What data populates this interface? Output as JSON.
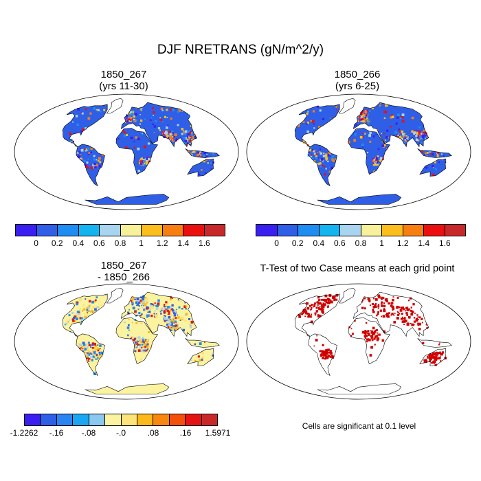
{
  "title": "DJF NRETRANS (gN/m^2/y)",
  "panels": [
    {
      "id": "p1",
      "line1": "1850_267",
      "line2": "(yrs 11-30)"
    },
    {
      "id": "p2",
      "line1": "1850_266",
      "line2": "(yrs 6-25)"
    },
    {
      "id": "p3",
      "line1": "1850_267",
      "line2": "- 1850_266"
    },
    {
      "id": "p4",
      "line1": "T-Test of two Case means at each grid point",
      "line2": ""
    }
  ],
  "colorbar_abs": {
    "colors": [
      "#3a1ff0",
      "#2e5fe6",
      "#1e8cf0",
      "#13b4f0",
      "#a8d4f0",
      "#f8f19c",
      "#fbbe1d",
      "#f77f12",
      "#ea1010",
      "#c9282a"
    ],
    "labels": [
      "0",
      "0.2",
      "0.4",
      "0.6",
      "0.8",
      "1",
      "1.2",
      "1.4",
      "1.6"
    ]
  },
  "colorbar_diff": {
    "colors": [
      "#3a1ff0",
      "#2e5fe6",
      "#2c84f0",
      "#1aa6f0",
      "#8ac8f0",
      "#fbf3a0",
      "#fce37a",
      "#fbb91c",
      "#f7870f",
      "#f3500c",
      "#e51414",
      "#c9282a"
    ],
    "labels": [
      "-1.2262",
      "-.16",
      "-.08",
      "-.0",
      ".08",
      ".16",
      "1.5971"
    ]
  },
  "footnote": "Cells are significant at 0.1 level",
  "map_colors": {
    "land_low": "#2e5fe6",
    "land_mid": "#a8d4f0",
    "land_high": "#ea1010",
    "diff_base": "#fbf3a0",
    "significant": "#d00000",
    "outline": "#000000"
  }
}
